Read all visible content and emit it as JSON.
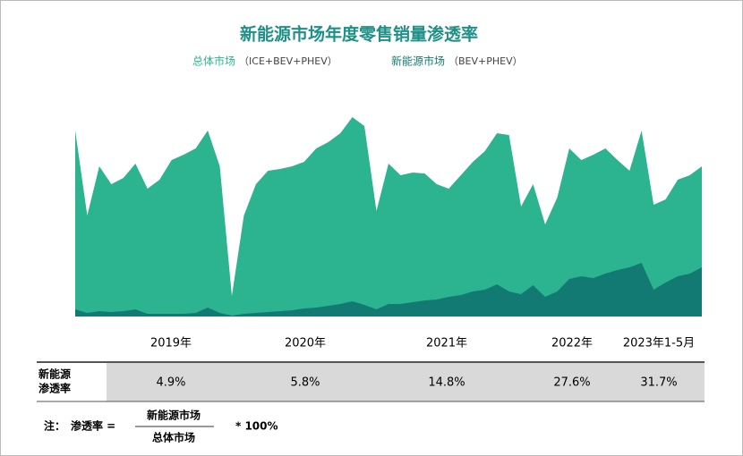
{
  "chart_data": {
    "type": "area",
    "title": "新能源市场年度零售销量渗透率",
    "series": [
      {
        "name": "总体市场",
        "note": "（ICE+BEV+PHEV）",
        "color": "#2cb38f",
        "values": [
          208,
          113,
          168,
          148,
          155,
          171,
          143,
          153,
          175,
          181,
          188,
          208,
          168,
          23,
          113,
          148,
          163,
          165,
          168,
          173,
          188,
          195,
          205,
          223,
          213,
          118,
          171,
          158,
          161,
          160,
          148,
          143,
          158,
          173,
          185,
          205,
          203,
          123,
          148,
          103,
          133,
          188,
          175,
          181,
          188,
          175,
          163,
          208,
          125,
          131,
          153,
          158,
          168
        ]
      },
      {
        "name": "新能源市场",
        "note": "（BEV+PHEV）",
        "color": "#137a73",
        "values": [
          8,
          4,
          6,
          5,
          6,
          8,
          3,
          3,
          3,
          3,
          4,
          10,
          4,
          1,
          3,
          4,
          5,
          6,
          7,
          9,
          10,
          12,
          14,
          17,
          13,
          8,
          14,
          14,
          16,
          18,
          19,
          22,
          24,
          28,
          30,
          36,
          28,
          25,
          35,
          22,
          28,
          42,
          45,
          43,
          48,
          52,
          55,
          60,
          30,
          38,
          45,
          48,
          55
        ]
      }
    ],
    "periods": [
      "2019年",
      "2020年",
      "2021年",
      "2022年",
      "2023年1-5月"
    ],
    "penetration": {
      "label": [
        "新能源",
        "渗透率"
      ],
      "values": [
        4.9,
        5.8,
        14.8,
        27.6,
        31.7
      ],
      "value_labels": [
        "4.9%",
        "5.8%",
        "14.8%",
        "27.6%",
        "31.7%"
      ]
    },
    "formula": {
      "note": "注：",
      "lhs": "渗透率 =",
      "numerator": "新能源市场",
      "denominator": "总体市场",
      "factor": "* 100%"
    }
  }
}
